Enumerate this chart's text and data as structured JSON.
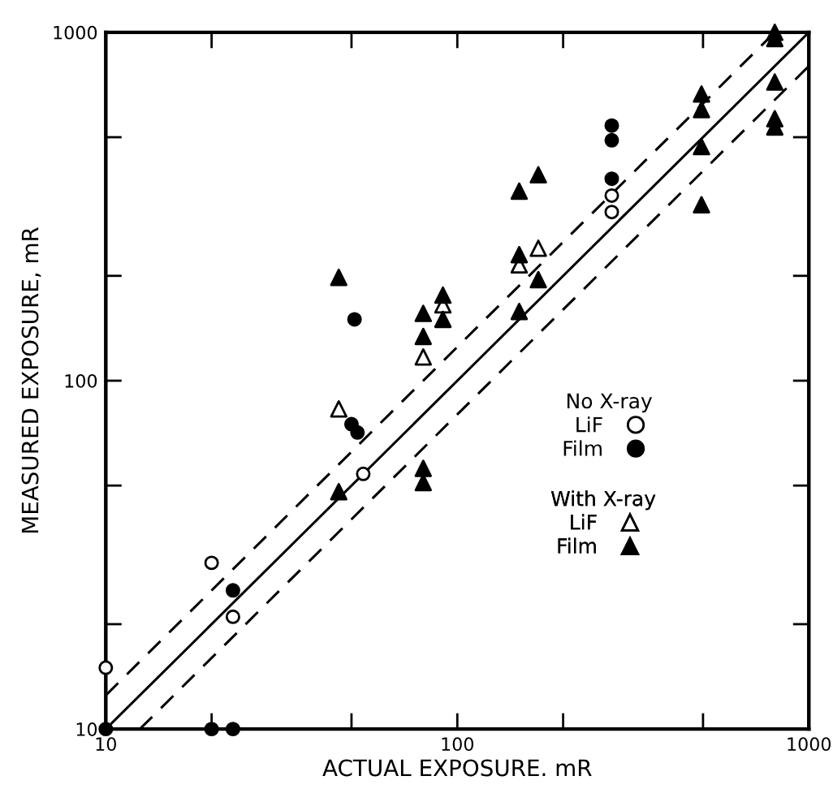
{
  "chart_data": {
    "type": "scatter",
    "xlabel": "ACTUAL EXPOSURE. mR",
    "ylabel": "MEASURED EXPOSURE, mR",
    "log": "xy",
    "xlim": [
      10,
      1000
    ],
    "ylim": [
      10,
      1000
    ],
    "xticks": [
      10,
      {
        "value": 20,
        "label": null
      },
      {
        "value": 50,
        "label": null
      },
      100,
      {
        "value": 200,
        "label": null
      },
      {
        "value": 500,
        "label": null
      },
      1000
    ],
    "yticks": [
      10,
      {
        "value": 20,
        "label": null
      },
      {
        "value": 50,
        "label": null
      },
      100,
      {
        "value": 200,
        "label": null
      },
      {
        "value": 500,
        "label": null
      },
      1000
    ],
    "grid": false,
    "legend": "right",
    "annotations": [
      "No X-ray",
      "With X-ray"
    ],
    "series": [
      {
        "type": "line",
        "color": "#000000",
        "line_style": "solid",
        "marker": "none",
        "x": [
          10,
          1000
        ],
        "values": [
          10,
          1000
        ]
      },
      {
        "type": "line",
        "color": "#000000",
        "line_style": "dashed",
        "marker": "none",
        "x": [
          10,
          800
        ],
        "values": [
          12.5,
          1000
        ]
      },
      {
        "type": "line",
        "color": "#000000",
        "line_style": "dashed",
        "marker": "none",
        "x": [
          12.5,
          1000
        ],
        "values": [
          10,
          800
        ]
      },
      {
        "name": "LiF",
        "color": "#ffffff",
        "marker": "circle",
        "x": [
          10,
          20,
          23,
          54,
          275,
          275
        ],
        "values": [
          15,
          30,
          21,
          54,
          340,
          305
        ]
      },
      {
        "name": "Film",
        "color": "#000000",
        "marker": "circle",
        "x": [
          10,
          20,
          23,
          23,
          50,
          52,
          51,
          275,
          275,
          275
        ],
        "values": [
          10,
          10,
          10,
          25,
          75,
          71,
          150,
          540,
          490,
          380
        ]
      },
      {
        "name": "LiF",
        "color": "#ffffff",
        "marker": "triangle",
        "x": [
          46,
          80,
          91,
          150,
          170
        ],
        "values": [
          83,
          117,
          165,
          215,
          240
        ]
      },
      {
        "name": "Film",
        "color": "#000000",
        "marker": "triangle",
        "x": [
          46,
          46,
          80,
          80,
          80,
          80,
          91,
          91,
          150,
          150,
          150,
          170,
          170,
          495,
          495,
          495,
          495,
          800,
          800,
          800,
          800,
          800
        ],
        "values": [
          198,
          48,
          156,
          134,
          56,
          51,
          176,
          150,
          350,
          230,
          158,
          390,
          195,
          665,
          600,
          470,
          320,
          1000,
          960,
          720,
          565,
          535
        ]
      }
    ]
  }
}
